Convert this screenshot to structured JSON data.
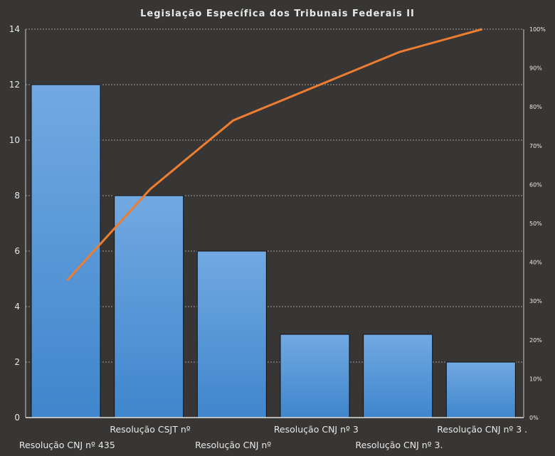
{
  "chart_data": {
    "type": "bar",
    "title": "Legislação Específica dos Tribunais Federais II",
    "categories": [
      "Resolução CNJ nº 435",
      "Resolução CSJT nº",
      "Resolução CNJ nº",
      "Resolução CNJ nº 3",
      "Resolução CNJ nº 3.",
      "Resolução CNJ nº 3 ."
    ],
    "values": [
      12,
      8,
      6,
      3,
      3,
      2
    ],
    "cumulative_percent": {
      "name": "Cumulative %",
      "type": "line",
      "values": [
        35.3,
        58.8,
        76.5,
        85.3,
        94.1,
        100
      ]
    },
    "ylim": [
      0,
      14
    ],
    "yticks": [
      "0",
      "2",
      "4",
      "6",
      "8",
      "10",
      "12",
      "14"
    ],
    "y2lim": [
      0,
      100
    ],
    "y2ticks": [
      "0%",
      "10%",
      "20%",
      "30%",
      "40%",
      "50%",
      "60%",
      "70%",
      "80%",
      "90%",
      "100%"
    ],
    "grid": true,
    "xlabel": "",
    "ylabel": "",
    "colors": {
      "bar": "#4a8fd4",
      "bar_top": "#6aa6e0",
      "line": "#ed7d31",
      "background": "#383634",
      "axis": "#c8c8c8"
    }
  }
}
